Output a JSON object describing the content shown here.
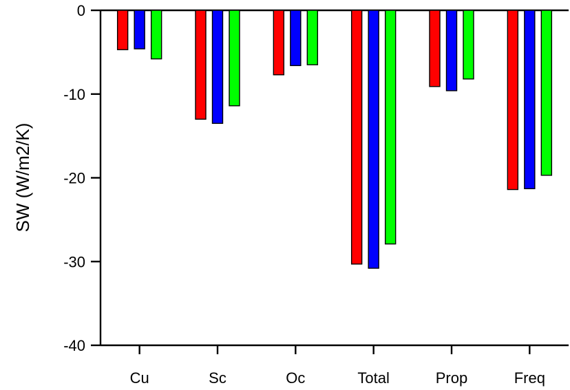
{
  "chart_data": {
    "type": "bar",
    "categories": [
      "Cu",
      "Sc",
      "Oc",
      "Total",
      "Prop",
      "Freq"
    ],
    "series": [
      {
        "color": "#ff0000",
        "values": [
          -4.7,
          -13.0,
          -7.7,
          -30.3,
          -9.1,
          -21.4
        ]
      },
      {
        "color": "#0000ff",
        "values": [
          -4.6,
          -13.5,
          -6.6,
          -30.8,
          -9.6,
          -21.3
        ]
      },
      {
        "color": "#00ff00",
        "values": [
          -5.8,
          -11.4,
          -6.5,
          -27.9,
          -8.2,
          -19.7
        ]
      }
    ],
    "title": "",
    "xlabel": "",
    "ylabel": "SW (W/m2/K)",
    "ylim": [
      -40,
      0
    ],
    "yticks": [
      0,
      -10,
      -20,
      -30,
      -40
    ],
    "ytick_labels": [
      "0",
      "-10",
      "-20",
      "-30",
      "-40"
    ],
    "grid": false,
    "legend": "none"
  }
}
